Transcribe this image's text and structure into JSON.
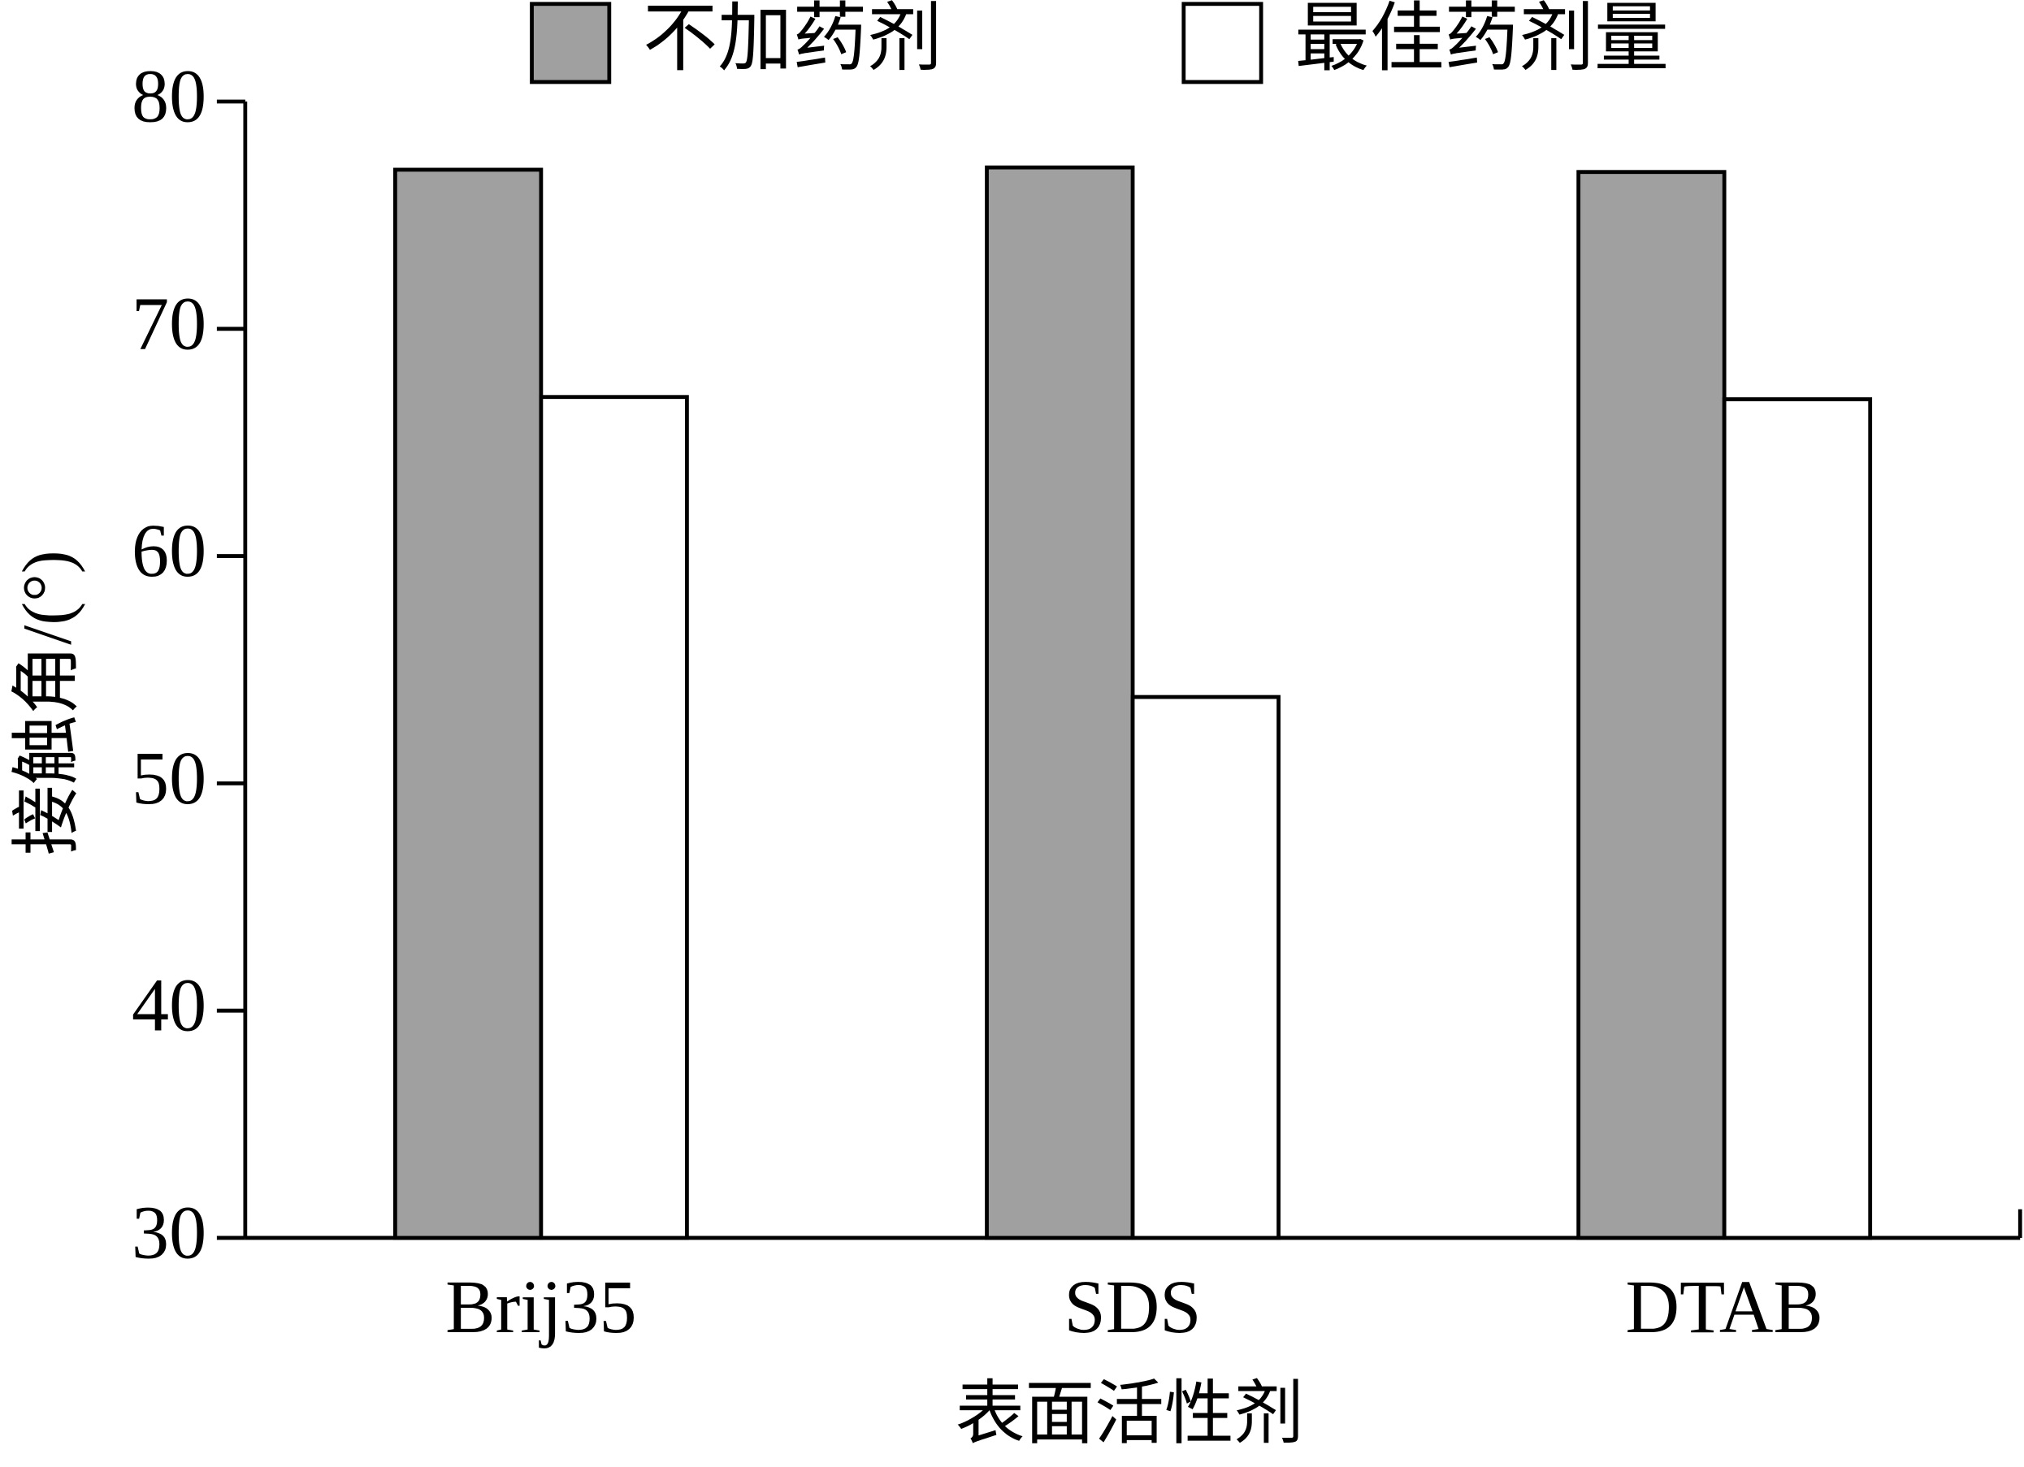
{
  "chart_data": {
    "type": "bar",
    "x_label": "表面活性剂",
    "y_label": "接触角/(°)",
    "categories": [
      "Brij35",
      "SDS",
      "DTAB"
    ],
    "series": [
      {
        "name": "不加药剂",
        "color": "#a0a0a0",
        "values": [
          77,
          77.1,
          76.9
        ]
      },
      {
        "name": "最佳药剂量",
        "color": "#ffffff",
        "values": [
          67,
          53.8,
          66.9
        ]
      }
    ],
    "ylim": [
      30,
      80
    ],
    "yticks": [
      30,
      40,
      50,
      60,
      70,
      80
    ],
    "grid": false,
    "legend": "top"
  }
}
